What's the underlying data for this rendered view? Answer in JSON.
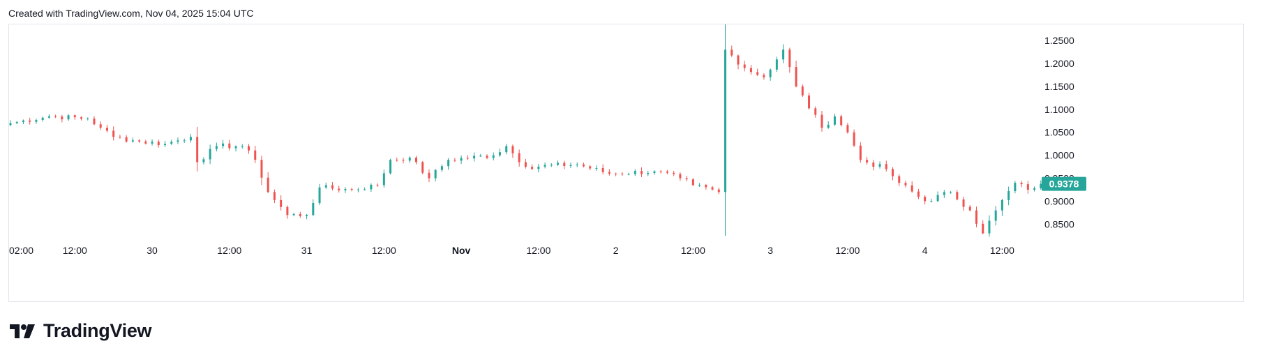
{
  "header": {
    "created_text": "Created with TradingView.com, Nov 04, 2025 15:04 UTC"
  },
  "brand": {
    "name": "TradingView",
    "logo_icon": "tradingview-logo-icon"
  },
  "colors": {
    "up": "#26a69a",
    "down": "#ef5350",
    "badge": "#26a69a",
    "text": "#131722",
    "border": "#e0e3eb"
  },
  "chart_data": {
    "type": "candlestick",
    "title": "",
    "xlabel": "",
    "ylabel": "",
    "ylim": [
      0.805,
      1.285
    ],
    "grid": false,
    "y_ticks": [
      "1.2500",
      "1.2000",
      "1.1500",
      "1.1000",
      "1.0500",
      "1.0000",
      "0.9500",
      "0.9000",
      "0.8500"
    ],
    "x_ticks": [
      {
        "label": "02:00",
        "bar": 0,
        "bold": false
      },
      {
        "label": "12:00",
        "bar": 10,
        "bold": false
      },
      {
        "label": "30",
        "bar": 22,
        "bold": false
      },
      {
        "label": "12:00",
        "bar": 34,
        "bold": false
      },
      {
        "label": "31",
        "bar": 46,
        "bold": false
      },
      {
        "label": "12:00",
        "bar": 58,
        "bold": false
      },
      {
        "label": "Nov",
        "bar": 70,
        "bold": true
      },
      {
        "label": "12:00",
        "bar": 82,
        "bold": false
      },
      {
        "label": "2",
        "bar": 94,
        "bold": false
      },
      {
        "label": "12:00",
        "bar": 106,
        "bold": false
      },
      {
        "label": "3",
        "bar": 118,
        "bold": false
      },
      {
        "label": "12:00",
        "bar": 130,
        "bold": false
      },
      {
        "label": "4",
        "bar": 142,
        "bold": false
      },
      {
        "label": "12:00",
        "bar": 154,
        "bold": false
      }
    ],
    "last_price": "0.9378",
    "last_price_value": 0.9378,
    "bar_anchors": [
      [
        0,
        1.07
      ],
      [
        6,
        1.085
      ],
      [
        12,
        1.08
      ],
      [
        14,
        1.06
      ],
      [
        16,
        1.04
      ],
      [
        20,
        1.03
      ],
      [
        24,
        1.025
      ],
      [
        28,
        1.04
      ],
      [
        29,
        0.985
      ],
      [
        32,
        1.02
      ],
      [
        36,
        1.02
      ],
      [
        38,
        0.99
      ],
      [
        40,
        0.92
      ],
      [
        43,
        0.87
      ],
      [
        46,
        0.87
      ],
      [
        48,
        0.93
      ],
      [
        53,
        0.925
      ],
      [
        57,
        0.935
      ],
      [
        59,
        0.99
      ],
      [
        62,
        0.995
      ],
      [
        65,
        0.95
      ],
      [
        68,
        0.99
      ],
      [
        75,
        1.0
      ],
      [
        77,
        1.02
      ],
      [
        80,
        0.975
      ],
      [
        88,
        0.98
      ],
      [
        93,
        0.96
      ],
      [
        100,
        0.965
      ],
      [
        104,
        0.95
      ],
      [
        106,
        0.935
      ],
      [
        110,
        0.92
      ],
      [
        111,
        1.23
      ],
      [
        114,
        1.19
      ],
      [
        117,
        1.17
      ],
      [
        120,
        1.23
      ],
      [
        122,
        1.15
      ],
      [
        126,
        1.06
      ],
      [
        128,
        1.085
      ],
      [
        130,
        1.05
      ],
      [
        132,
        0.99
      ],
      [
        136,
        0.97
      ],
      [
        138,
        0.94
      ],
      [
        142,
        0.9
      ],
      [
        146,
        0.92
      ],
      [
        149,
        0.88
      ],
      [
        151,
        0.83
      ],
      [
        153,
        0.88
      ],
      [
        156,
        0.94
      ],
      [
        158,
        0.925
      ],
      [
        160,
        0.9378
      ]
    ]
  }
}
